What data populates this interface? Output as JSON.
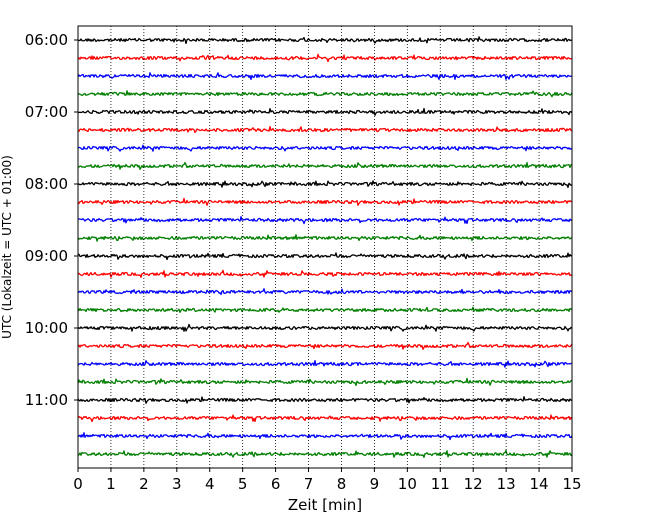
{
  "chart_data": {
    "type": "line",
    "title": "",
    "xlabel": "Zeit  [min]",
    "ylabel": "UTC (Lokalzeit = UTC + 01:00)",
    "xlim": [
      0,
      15
    ],
    "x_ticks": [
      "0",
      "1",
      "2",
      "3",
      "4",
      "5",
      "6",
      "7",
      "8",
      "9",
      "10",
      "11",
      "12",
      "13",
      "14",
      "15"
    ],
    "y_ticks": [
      "06:00",
      "07:00",
      "08:00",
      "09:00",
      "10:00",
      "11:00"
    ],
    "trace_start": "06:00",
    "trace_interval_min": 15,
    "trace_count": 24,
    "trace_colors": [
      "#000000",
      "#ff0000",
      "#0000ff",
      "#007f00"
    ],
    "grid": {
      "vertical": "dotted",
      "horizontal": false
    }
  }
}
